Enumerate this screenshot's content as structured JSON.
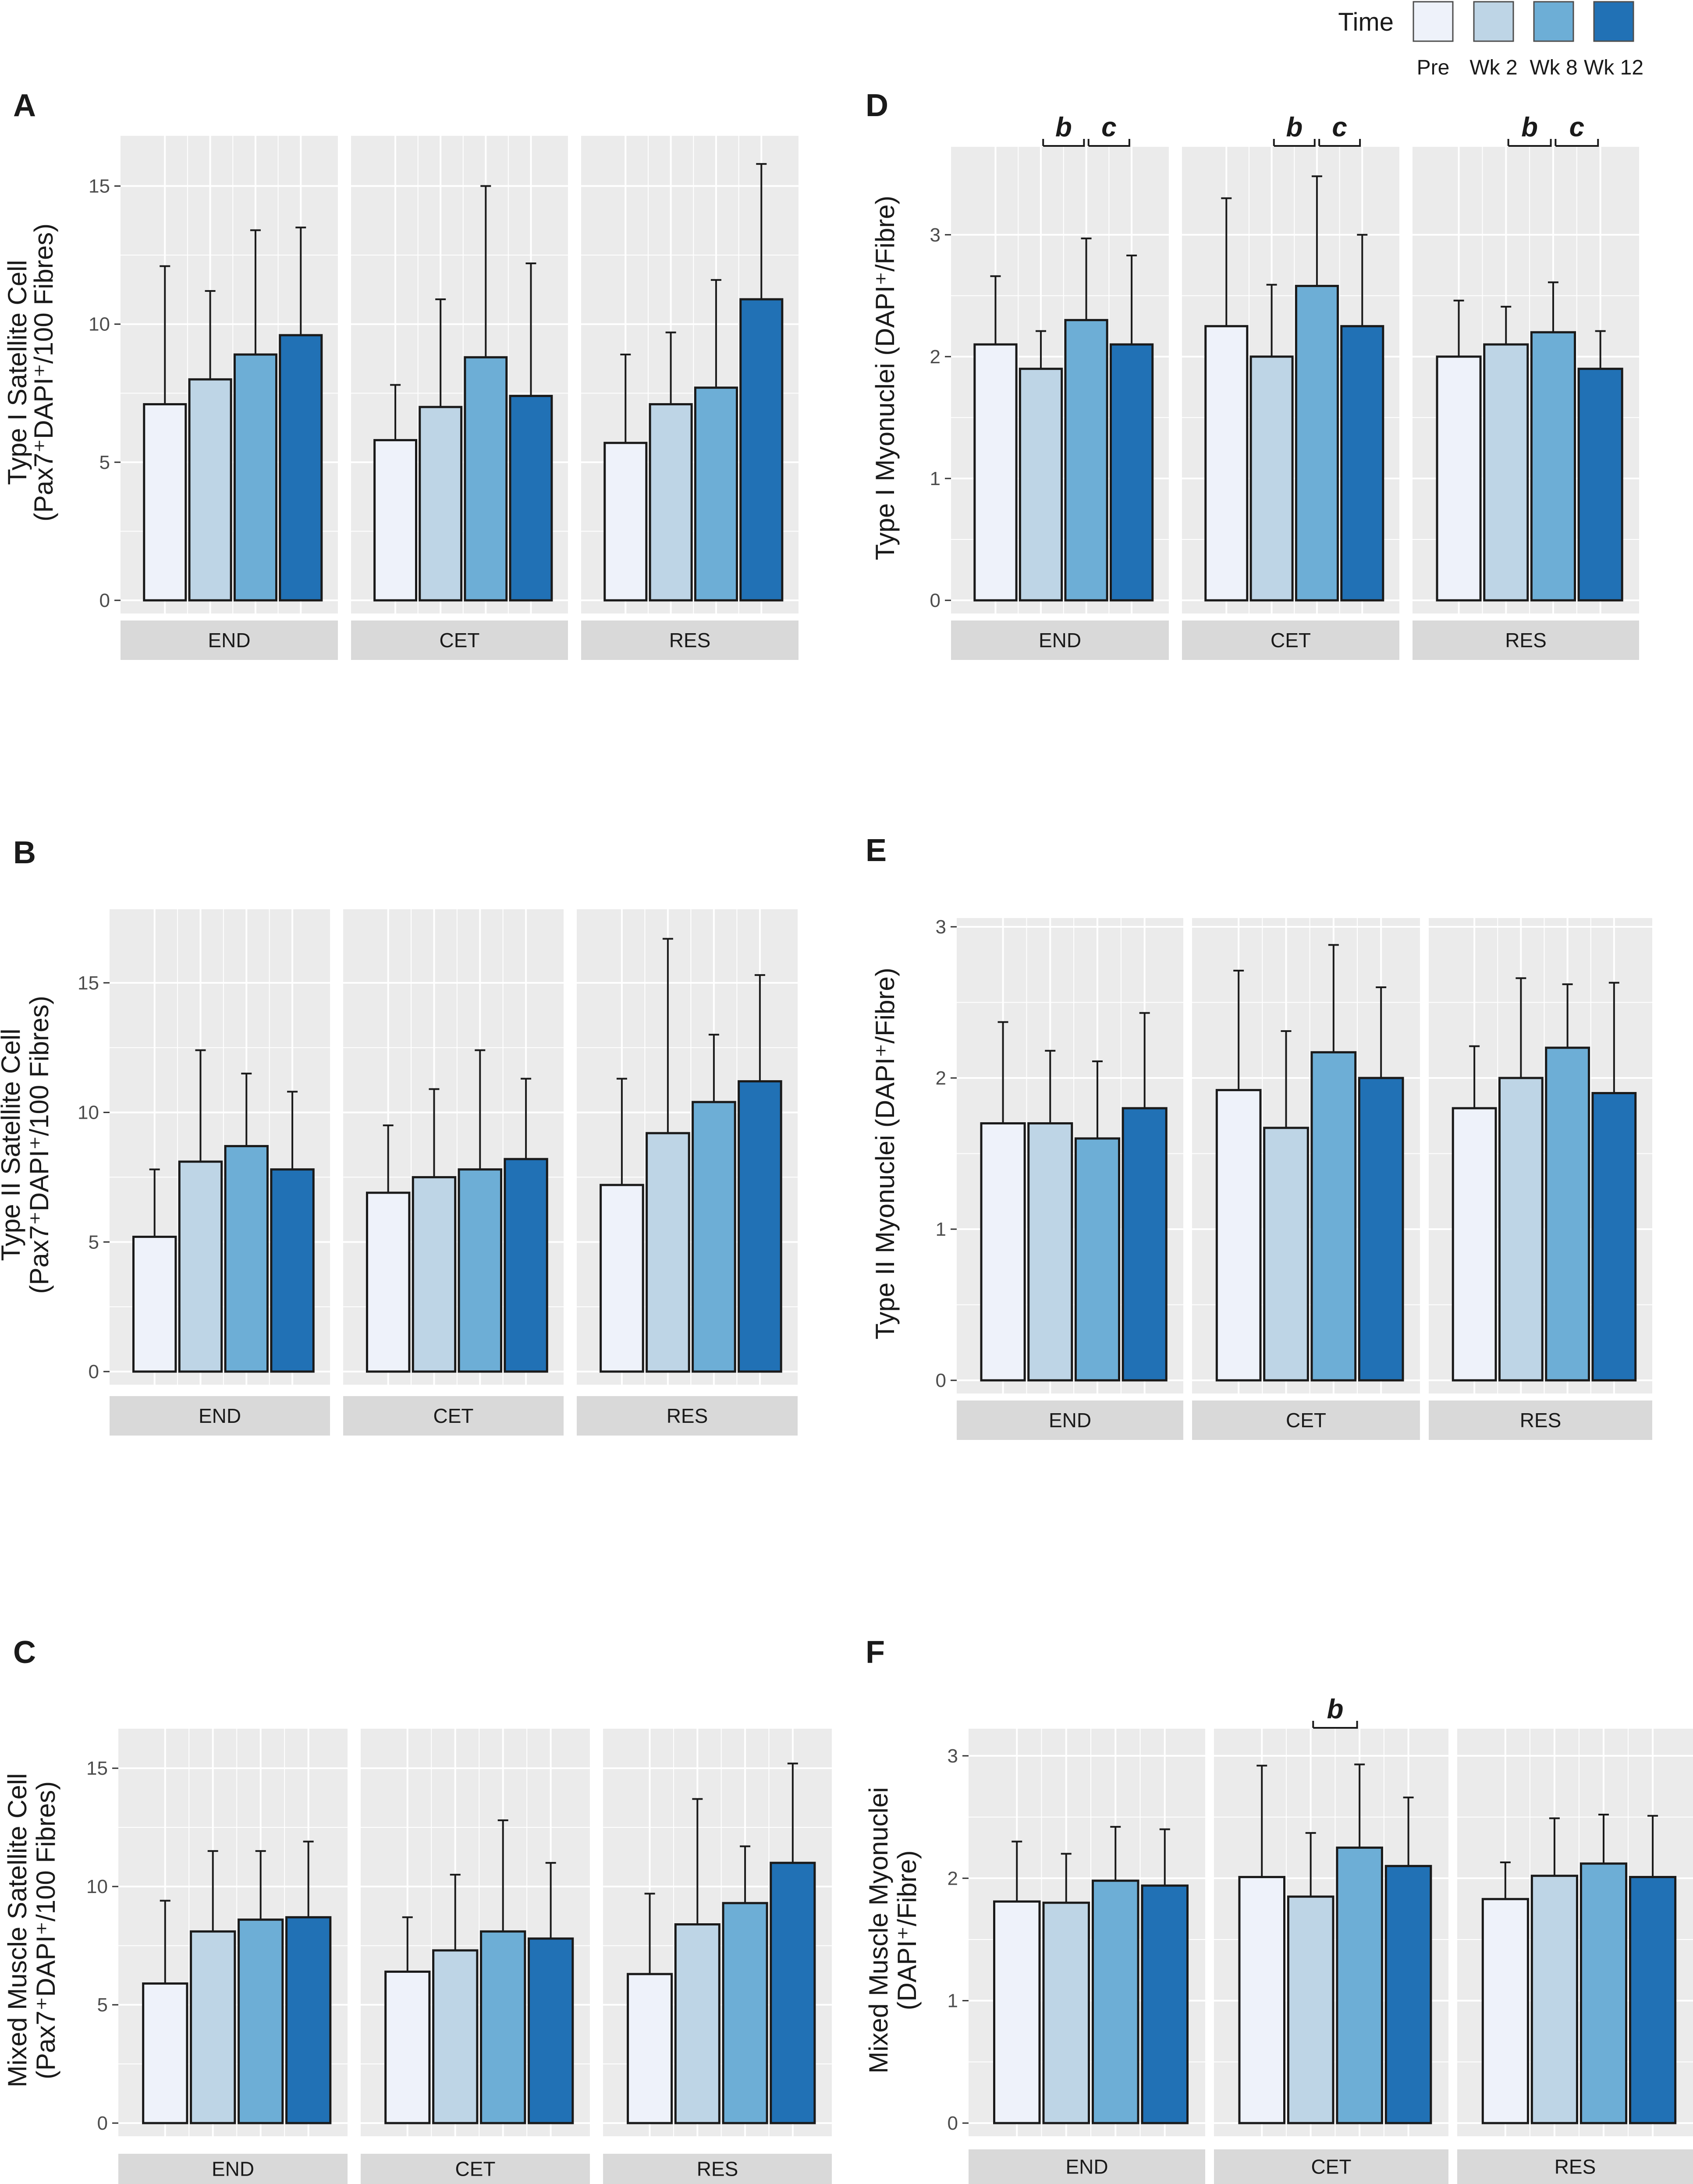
{
  "legend": {
    "title": "Time",
    "items": [
      {
        "label": "Pre",
        "color": "#EEF2FA"
      },
      {
        "label": "Wk 2",
        "color": "#BED5E6"
      },
      {
        "label": "Wk 8",
        "color": "#6DAED6"
      },
      {
        "label": "Wk 12",
        "color": "#2171B5"
      }
    ]
  },
  "chart_data": [
    {
      "type": "bar",
      "panel": "A",
      "ylabel_line1": "Type I Satellite Cell",
      "ylabel_line2": "(Pax7⁺DAPI⁺/100 Fibres)",
      "ylim": [
        0,
        16.5
      ],
      "yticks": [
        0,
        5,
        10,
        15
      ],
      "groups": [
        "END",
        "CET",
        "RES"
      ],
      "series_names": [
        "Pre",
        "Wk 2",
        "Wk 8",
        "Wk 12"
      ],
      "values": [
        [
          7.1,
          8.0,
          8.9,
          9.6
        ],
        [
          5.8,
          7.0,
          8.8,
          7.4
        ],
        [
          5.7,
          7.1,
          7.7,
          10.9
        ]
      ],
      "errors": [
        [
          5.0,
          3.2,
          4.5,
          3.9
        ],
        [
          2.0,
          3.9,
          6.2,
          4.8
        ],
        [
          3.2,
          2.6,
          3.9,
          4.9
        ]
      ],
      "significance": [
        {
          "group": 0,
          "from": 2,
          "to": 2,
          "label": ""
        }
      ]
    },
    {
      "type": "bar",
      "panel": "B",
      "ylabel_line1": "Type II Satellite Cell",
      "ylabel_line2": "(Pax7⁺DAPI⁺/100 Fibres)",
      "ylim": [
        0,
        17.5
      ],
      "yticks": [
        0,
        5,
        10,
        15
      ],
      "groups": [
        "END",
        "CET",
        "RES"
      ],
      "series_names": [
        "Pre",
        "Wk 2",
        "Wk 8",
        "Wk 12"
      ],
      "values": [
        [
          5.2,
          8.1,
          8.7,
          7.8
        ],
        [
          6.9,
          7.5,
          7.8,
          8.2
        ],
        [
          7.2,
          9.2,
          10.4,
          11.2
        ]
      ],
      "errors": [
        [
          2.6,
          4.3,
          2.8,
          3.0
        ],
        [
          2.6,
          3.4,
          4.6,
          3.1
        ],
        [
          4.1,
          7.5,
          2.6,
          4.1
        ]
      ],
      "significance": []
    },
    {
      "type": "bar",
      "panel": "C",
      "ylabel_line1": "Mixed Muscle Satellite Cell",
      "ylabel_line2": "(Pax7⁺DAPI⁺/100 Fibres)",
      "ylim": [
        0,
        16.3
      ],
      "yticks": [
        0,
        5,
        10,
        15
      ],
      "groups": [
        "END",
        "CET",
        "RES"
      ],
      "series_names": [
        "Pre",
        "Wk 2",
        "Wk 8",
        "Wk 12"
      ],
      "values": [
        [
          5.9,
          8.1,
          8.6,
          8.7
        ],
        [
          6.4,
          7.3,
          8.1,
          7.8
        ],
        [
          6.3,
          8.4,
          9.3,
          11.0
        ]
      ],
      "errors": [
        [
          3.5,
          3.4,
          2.9,
          3.2
        ],
        [
          2.3,
          3.2,
          4.7,
          3.2
        ],
        [
          3.4,
          5.3,
          2.4,
          4.2
        ]
      ],
      "significance": []
    },
    {
      "type": "bar",
      "panel": "D",
      "ylabel_line1": "Type I Myonuclei (DAPI⁺/Fibre)",
      "ylabel_line2": "",
      "ylim": [
        0,
        3.65
      ],
      "yticks": [
        0,
        1,
        2,
        3
      ],
      "groups": [
        "END",
        "CET",
        "RES"
      ],
      "series_names": [
        "Pre",
        "Wk 2",
        "Wk 8",
        "Wk 12"
      ],
      "values": [
        [
          2.1,
          1.9,
          2.3,
          2.1
        ],
        [
          2.25,
          2.0,
          2.58,
          2.25
        ],
        [
          2.0,
          2.1,
          2.2,
          1.9
        ]
      ],
      "errors": [
        [
          0.56,
          0.31,
          0.67,
          0.73
        ],
        [
          1.05,
          0.59,
          0.9,
          0.75
        ],
        [
          0.46,
          0.31,
          0.41,
          0.31
        ]
      ],
      "significance": [
        {
          "group": 0,
          "from": 1.5,
          "to": 2.5,
          "label": "b"
        },
        {
          "group": 0,
          "from": 2.5,
          "to": 3.5,
          "label": "c"
        },
        {
          "group": 1,
          "from": 1.5,
          "to": 2.5,
          "label": "b"
        },
        {
          "group": 1,
          "from": 2.5,
          "to": 3.5,
          "label": "c"
        },
        {
          "group": 2,
          "from": 1.5,
          "to": 2.5,
          "label": "b"
        },
        {
          "group": 2,
          "from": 2.5,
          "to": 3.5,
          "label": "c"
        }
      ]
    },
    {
      "type": "bar",
      "panel": "E",
      "ylabel_line1": "Type II Myonuclei (DAPI⁺/Fibre)",
      "ylabel_line2": "",
      "ylim": [
        0,
        3.0
      ],
      "yticks": [
        0,
        1,
        2,
        3
      ],
      "groups": [
        "END",
        "CET",
        "RES"
      ],
      "series_names": [
        "Pre",
        "Wk 2",
        "Wk 8",
        "Wk 12"
      ],
      "values": [
        [
          1.7,
          1.7,
          1.6,
          1.8
        ],
        [
          1.92,
          1.67,
          2.17,
          2.0
        ],
        [
          1.8,
          2.0,
          2.2,
          1.9
        ]
      ],
      "errors": [
        [
          0.67,
          0.48,
          0.51,
          0.63
        ],
        [
          0.79,
          0.64,
          0.71,
          0.6
        ],
        [
          0.41,
          0.66,
          0.42,
          0.73
        ]
      ],
      "significance": []
    },
    {
      "type": "bar",
      "panel": "F",
      "ylabel_line1": "Mixed Muscle Myonuclei",
      "ylabel_line2": "(DAPI⁺/Fibre)",
      "ylim": [
        0,
        3.15
      ],
      "yticks": [
        0,
        1,
        2,
        3
      ],
      "groups": [
        "END",
        "CET",
        "RES"
      ],
      "series_names": [
        "Pre",
        "Wk 2",
        "Wk 8",
        "Wk 12"
      ],
      "values": [
        [
          1.81,
          1.8,
          1.98,
          1.94
        ],
        [
          2.01,
          1.85,
          2.25,
          2.1
        ],
        [
          1.83,
          2.02,
          2.12,
          2.01
        ]
      ],
      "errors": [
        [
          0.49,
          0.4,
          0.44,
          0.46
        ],
        [
          0.91,
          0.52,
          0.68,
          0.56
        ],
        [
          0.3,
          0.47,
          0.4,
          0.5
        ]
      ],
      "significance": [
        {
          "group": 1,
          "from": 1.5,
          "to": 2.5,
          "label": "b"
        }
      ]
    }
  ]
}
